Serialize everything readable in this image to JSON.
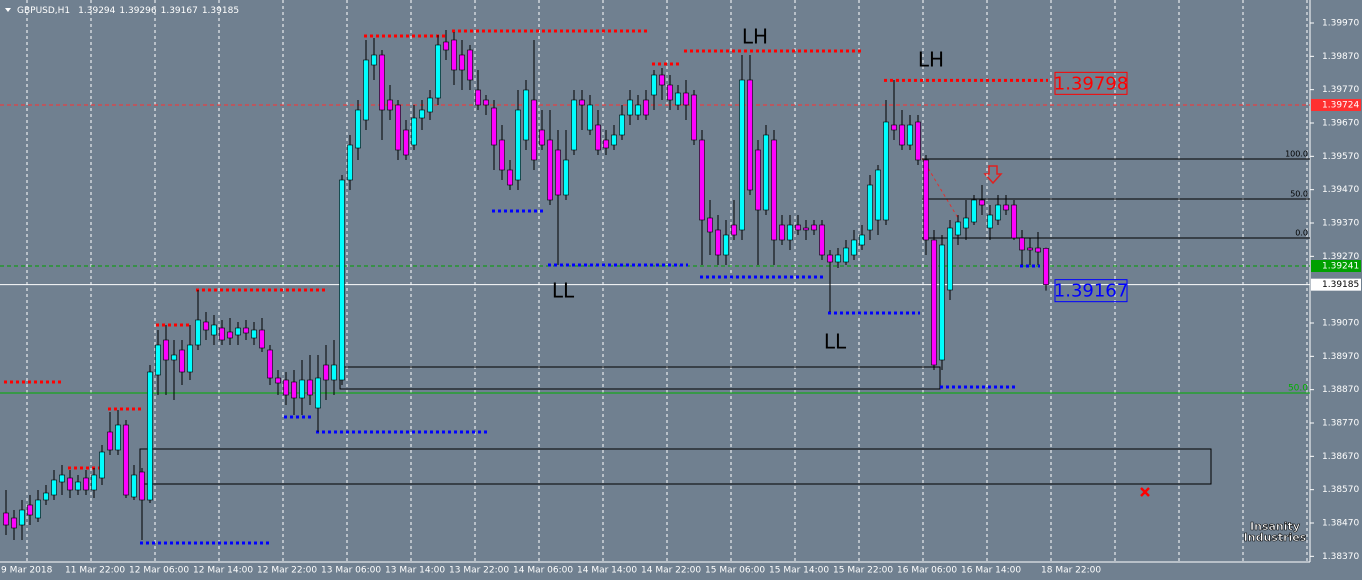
{
  "chart_data": {
    "type": "candlestick",
    "symbol": "GBPUSD,H1",
    "categories": [
      "9 Mar 2018",
      null,
      null,
      null,
      null,
      null,
      null,
      null,
      "11 Mar 22:00",
      null,
      null,
      null,
      null,
      null,
      null,
      null,
      "12 Mar 06:00",
      null,
      null,
      null,
      null,
      null,
      null,
      null,
      "12 Mar 14:00",
      null,
      null,
      null,
      null,
      null,
      null,
      null,
      "12 Mar 22:00",
      null,
      null,
      null,
      null,
      null,
      null,
      null,
      "13 Mar 06:00",
      null,
      null,
      null,
      null,
      null,
      null,
      null,
      "13 Mar 14:00",
      null,
      null,
      null,
      null,
      null,
      null,
      null,
      "13 Mar 22:00",
      null,
      null,
      null,
      null,
      null,
      null,
      null,
      "14 Mar 06:00",
      null,
      null,
      null,
      null,
      null,
      null,
      null,
      "14 Mar 14:00",
      null,
      null,
      null,
      null,
      null,
      null,
      null,
      "14 Mar 22:00",
      null,
      null,
      null,
      null,
      null,
      null,
      null,
      "15 Mar 06:00",
      null,
      null,
      null,
      null,
      null,
      null,
      null,
      "15 Mar 14:00",
      null,
      null,
      null,
      null,
      null,
      null,
      null,
      "15 Mar 22:00",
      null,
      null,
      null,
      null,
      null,
      null,
      null,
      "16 Mar 06:00",
      null,
      null,
      null,
      null,
      null,
      null,
      null,
      "16 Mar 14:00",
      null,
      null,
      null,
      null,
      null,
      null,
      null,
      null,
      null,
      "18 Mar 22:00"
    ],
    "open": [
      1.385,
      1.38485,
      1.38464,
      1.38524,
      1.38485,
      1.38539,
      1.38554,
      1.38593,
      1.38605,
      1.38569,
      1.38605,
      1.38569,
      1.38605,
      1.38743,
      1.38689,
      1.38764,
      1.38548,
      1.38623,
      1.38539,
      1.38914,
      1.39019,
      1.38959,
      1.38989,
      1.38923,
      1.39004,
      1.39073,
      1.39034,
      1.39055,
      1.39043,
      1.39034,
      1.39055,
      1.39025,
      1.39049,
      1.38989,
      1.38905,
      1.38899,
      1.38893,
      1.38845,
      1.38899,
      1.38815,
      1.38944,
      1.38899,
      1.38899,
      1.39499,
      1.39595,
      1.39679,
      1.39844,
      1.39874,
      1.39739,
      1.39724,
      1.39649,
      1.39604,
      1.39685,
      1.39703,
      1.39745,
      1.39913,
      1.39919,
      1.39874,
      1.39889,
      1.39769,
      1.39739,
      1.39715,
      1.39619,
      1.39529,
      1.39499,
      1.39619,
      1.39739,
      1.39649,
      1.39619,
      1.39589,
      1.39454,
      1.39589,
      1.39739,
      1.39649,
      1.39664,
      1.39619,
      1.39604,
      1.39634,
      1.39694,
      1.39694,
      1.39739,
      1.39754,
      1.39814,
      1.39784,
      1.39724,
      1.3976,
      1.39754,
      1.39619,
      1.39385,
      1.39349,
      1.39274,
      1.39364,
      1.39349,
      1.39799,
      1.39589,
      1.39409,
      1.39619,
      1.39364,
      1.39319,
      1.39364,
      1.39355,
      1.39364,
      1.39364,
      1.39274,
      1.39253,
      1.39253,
      1.39274,
      1.39304,
      1.39349,
      1.39379,
      1.39379,
      1.39664,
      1.39664,
      1.39604,
      1.39673,
      1.39559,
      1.39319,
      1.38959,
      1.39169,
      1.39334,
      1.39355,
      1.39373,
      1.39439,
      1.39355,
      1.39379,
      1.39424,
      1.39424,
      1.39325,
      1.39295,
      1.39295,
      1.39294
    ],
    "high": [
      1.38569,
      1.38509,
      1.38539,
      1.38554,
      1.38569,
      1.38584,
      1.38629,
      1.38644,
      1.38629,
      1.38614,
      1.38629,
      1.38635,
      1.38704,
      1.38803,
      1.38809,
      1.38779,
      1.38644,
      1.38635,
      1.38944,
      1.39049,
      1.39064,
      1.39019,
      1.39019,
      1.39064,
      1.39169,
      1.39103,
      1.39094,
      1.39079,
      1.39085,
      1.39073,
      1.39079,
      1.39073,
      1.39085,
      1.39004,
      1.38929,
      1.38923,
      1.38929,
      1.38959,
      1.38974,
      1.38974,
      1.39004,
      1.39019,
      1.39514,
      1.39634,
      1.39739,
      1.39919,
      1.39925,
      1.39889,
      1.39784,
      1.39739,
      1.39679,
      1.39724,
      1.39739,
      1.39769,
      1.39934,
      1.39949,
      1.39943,
      1.39919,
      1.39904,
      1.39829,
      1.39754,
      1.39739,
      1.39664,
      1.39559,
      1.39769,
      1.39799,
      1.39919,
      1.39709,
      1.39709,
      1.39649,
      1.39649,
      1.39769,
      1.39769,
      1.39754,
      1.39709,
      1.39649,
      1.39664,
      1.39724,
      1.39769,
      1.39754,
      1.39769,
      1.39829,
      1.39835,
      1.39814,
      1.39784,
      1.39799,
      1.39769,
      1.39649,
      1.39439,
      1.39394,
      1.39379,
      1.39439,
      1.39874,
      1.39874,
      1.39619,
      1.39664,
      1.39649,
      1.39394,
      1.39394,
      1.39394,
      1.39379,
      1.39379,
      1.39379,
      1.39289,
      1.39295,
      1.39319,
      1.39349,
      1.39364,
      1.39514,
      1.39544,
      1.39739,
      1.39799,
      1.39709,
      1.39694,
      1.39694,
      1.39574,
      1.39349,
      1.39334,
      1.39379,
      1.39394,
      1.39439,
      1.39454,
      1.39484,
      1.39424,
      1.39454,
      1.39454,
      1.39439,
      1.39349,
      1.39325,
      1.39343,
      1.39296
    ],
    "low": [
      1.38434,
      1.38419,
      1.38419,
      1.38464,
      1.38473,
      1.38524,
      1.38539,
      1.38554,
      1.38545,
      1.38554,
      1.38554,
      1.38545,
      1.38584,
      1.38674,
      1.38674,
      1.38545,
      1.38539,
      1.38419,
      1.3853,
      1.38854,
      1.38854,
      1.38839,
      1.38884,
      1.38899,
      1.38989,
      1.39019,
      1.39004,
      1.39004,
      1.39004,
      1.39004,
      1.39019,
      1.39004,
      1.38983,
      1.38884,
      1.38854,
      1.38824,
      1.38794,
      1.38794,
      1.38824,
      1.38743,
      1.38839,
      1.38854,
      1.38884,
      1.39469,
      1.39559,
      1.39649,
      1.39799,
      1.39619,
      1.39679,
      1.39559,
      1.39559,
      1.39589,
      1.39649,
      1.39679,
      1.39724,
      1.39859,
      1.39784,
      1.39769,
      1.39769,
      1.39709,
      1.39694,
      1.39529,
      1.39499,
      1.39469,
      1.39469,
      1.39589,
      1.39529,
      1.39589,
      1.39424,
      1.39244,
      1.39439,
      1.39574,
      1.39649,
      1.39634,
      1.39574,
      1.39574,
      1.39589,
      1.39619,
      1.39664,
      1.39679,
      1.39679,
      1.39709,
      1.39739,
      1.39709,
      1.39709,
      1.39679,
      1.39604,
      1.39244,
      1.39274,
      1.39244,
      1.39244,
      1.39319,
      1.39319,
      1.39454,
      1.39244,
      1.39394,
      1.39244,
      1.39304,
      1.39289,
      1.39334,
      1.39319,
      1.39334,
      1.39259,
      1.39103,
      1.39235,
      1.39244,
      1.39259,
      1.39289,
      1.39319,
      1.39334,
      1.39364,
      1.39619,
      1.39589,
      1.39589,
      1.39544,
      1.39274,
      1.38929,
      1.38929,
      1.39139,
      1.39304,
      1.39319,
      1.39364,
      1.39394,
      1.39319,
      1.39364,
      1.39394,
      1.39319,
      1.39244,
      1.39244,
      1.39244,
      1.39167
    ],
    "close": [
      1.38464,
      1.38455,
      1.38509,
      1.38494,
      1.38539,
      1.3856,
      1.38599,
      1.38614,
      1.38569,
      1.38593,
      1.38569,
      1.38614,
      1.38683,
      1.38689,
      1.38764,
      1.38554,
      1.38614,
      1.38539,
      1.38923,
      1.39004,
      1.38959,
      1.38974,
      1.38923,
      1.39004,
      1.39079,
      1.39049,
      1.39064,
      1.39019,
      1.39025,
      1.39055,
      1.3904,
      1.39049,
      1.38995,
      1.38905,
      1.3889,
      1.38854,
      1.38845,
      1.38899,
      1.38854,
      1.38905,
      1.38899,
      1.38944,
      1.39499,
      1.39604,
      1.39709,
      1.39859,
      1.39874,
      1.39709,
      1.39709,
      1.39589,
      1.39574,
      1.39685,
      1.39709,
      1.39745,
      1.39904,
      1.39889,
      1.39829,
      1.39829,
      1.39799,
      1.39724,
      1.39724,
      1.39604,
      1.39529,
      1.39484,
      1.39709,
      1.39769,
      1.39559,
      1.39604,
      1.39439,
      1.39454,
      1.39559,
      1.39739,
      1.39724,
      1.39724,
      1.39589,
      1.39595,
      1.39634,
      1.39694,
      1.39739,
      1.39724,
      1.39694,
      1.39814,
      1.39784,
      1.39739,
      1.3976,
      1.39724,
      1.39619,
      1.39379,
      1.39343,
      1.39274,
      1.39334,
      1.39334,
      1.39799,
      1.39469,
      1.39409,
      1.39634,
      1.39319,
      1.39319,
      1.39364,
      1.39349,
      1.39349,
      1.39349,
      1.39274,
      1.39253,
      1.39274,
      1.39295,
      1.39319,
      1.39334,
      1.39484,
      1.39529,
      1.39673,
      1.39649,
      1.39604,
      1.39664,
      1.39559,
      1.39319,
      1.38944,
      1.39304,
      1.39355,
      1.39373,
      1.39385,
      1.39439,
      1.39424,
      1.39394,
      1.39424,
      1.39409,
      1.39325,
      1.39289,
      1.39289,
      1.39283,
      1.39185
    ],
    "up_color": "#00ffff",
    "down_color": "#ff00ff",
    "ylim": [
      1.38353,
      1.40039
    ],
    "yticks": [
      {
        "value": 1.3997,
        "label": "1.39970"
      },
      {
        "value": 1.3987,
        "label": "1.39870"
      },
      {
        "value": 1.3977,
        "label": "1.39770"
      },
      {
        "value": 1.3967,
        "label": "1.39670"
      },
      {
        "value": 1.3957,
        "label": "1.39570"
      },
      {
        "value": 1.3947,
        "label": "1.39470"
      },
      {
        "value": 1.3937,
        "label": "1.39370"
      },
      {
        "value": 1.3927,
        "label": "1.39270"
      },
      {
        "value": 1.3907,
        "label": "1.39070"
      },
      {
        "value": 1.3897,
        "label": "1.38970"
      },
      {
        "value": 1.3887,
        "label": "1.38870"
      },
      {
        "value": 1.3877,
        "label": "1.38770"
      },
      {
        "value": 1.3867,
        "label": "1.38670"
      },
      {
        "value": 1.3857,
        "label": "1.38570"
      },
      {
        "value": 1.3847,
        "label": "1.38470"
      },
      {
        "value": 1.3837,
        "label": "1.38370"
      }
    ],
    "grid": true,
    "resistance": {
      "color": "#ff0000",
      "values": [
        1.38893,
        1.38635,
        1.38812,
        1.39064,
        1.39169,
        1.39931,
        1.39946,
        1.39847,
        1.39886,
        1.39798
      ]
    },
    "support": {
      "color": "#0000ff",
      "values": [
        1.3841,
        1.38788,
        1.38743,
        1.39406,
        1.39244,
        1.39208,
        1.391,
        1.38878,
        1.39241
      ]
    },
    "lines": [
      {
        "value": 1.39724,
        "color": "#ff3030"
      },
      {
        "value": 1.39241,
        "color": "#00a000"
      }
    ],
    "price_line_color": "#ffffff",
    "fibo": {
      "color": "#000000",
      "levels": [
        {
          "label": "100.0",
          "value": 1.39562
        },
        {
          "label": "50.0",
          "value": 1.39442
        },
        {
          "label": "0.0",
          "value": 1.39325
        }
      ]
    },
    "fibo_extra": {
      "label": "50.0",
      "value": 1.3886,
      "color": "#00b000"
    },
    "zones": [
      {
        "high": 1.38938,
        "low": 1.38872
      },
      {
        "high": 1.38692,
        "low": 1.38587
      }
    ],
    "annotations": [
      "LH",
      "LH",
      "LL",
      "LL"
    ],
    "logo": [
      "Insanity",
      "Industries"
    ]
  }
}
